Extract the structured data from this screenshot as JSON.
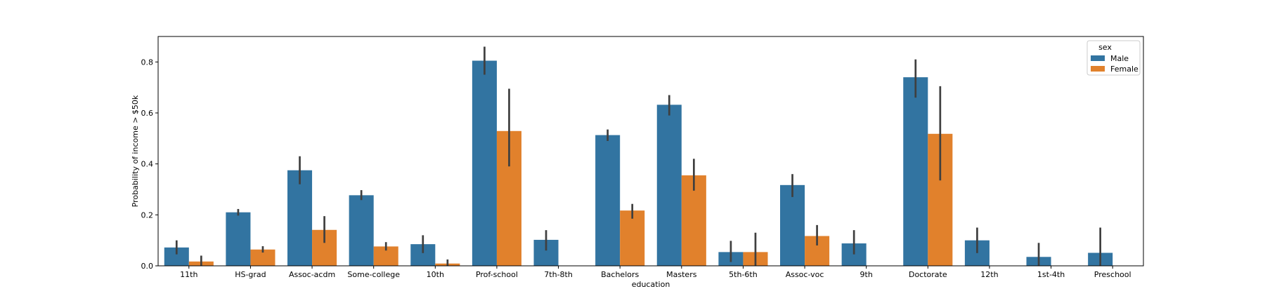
{
  "chart_data": {
    "type": "bar",
    "xlabel": "education",
    "ylabel": "Probability of income > $50k",
    "ylim": [
      0,
      0.9
    ],
    "yticks": [
      "0.0",
      "0.2",
      "0.4",
      "0.6",
      "0.8"
    ],
    "categories": [
      "11th",
      "HS-grad",
      "Assoc-acdm",
      "Some-college",
      "10th",
      "Prof-school",
      "7th-8th",
      "Bachelors",
      "Masters",
      "5th-6th",
      "Assoc-voc",
      "9th",
      "Doctorate",
      "12th",
      "1st-4th",
      "Preschool"
    ],
    "legend": {
      "title": "sex",
      "placement": "top-right"
    },
    "series": [
      {
        "name": "Male",
        "color": "#3274a1",
        "values": [
          0.072,
          0.21,
          0.375,
          0.277,
          0.085,
          0.805,
          0.102,
          0.513,
          0.632,
          0.054,
          0.317,
          0.088,
          0.74,
          0.1,
          0.035,
          0.051
        ],
        "ci_low": [
          0.045,
          0.197,
          0.32,
          0.258,
          0.05,
          0.75,
          0.06,
          0.49,
          0.59,
          0.015,
          0.27,
          0.045,
          0.66,
          0.05,
          0.0,
          0.0
        ],
        "ci_high": [
          0.1,
          0.223,
          0.43,
          0.297,
          0.12,
          0.86,
          0.14,
          0.535,
          0.67,
          0.098,
          0.36,
          0.14,
          0.81,
          0.15,
          0.09,
          0.15
        ]
      },
      {
        "name": "Female",
        "color": "#e1812c",
        "values": [
          0.017,
          0.064,
          0.141,
          0.076,
          0.009,
          0.529,
          null,
          0.217,
          0.355,
          0.054,
          0.117,
          null,
          0.518,
          null,
          null,
          null
        ],
        "ci_low": [
          0.0,
          0.052,
          0.09,
          0.06,
          0.0,
          0.39,
          null,
          0.185,
          0.295,
          0.0,
          0.08,
          null,
          0.335,
          null,
          null,
          null
        ],
        "ci_high": [
          0.04,
          0.077,
          0.195,
          0.093,
          0.025,
          0.695,
          null,
          0.243,
          0.42,
          0.13,
          0.16,
          null,
          0.705,
          null,
          null,
          null
        ]
      }
    ]
  }
}
